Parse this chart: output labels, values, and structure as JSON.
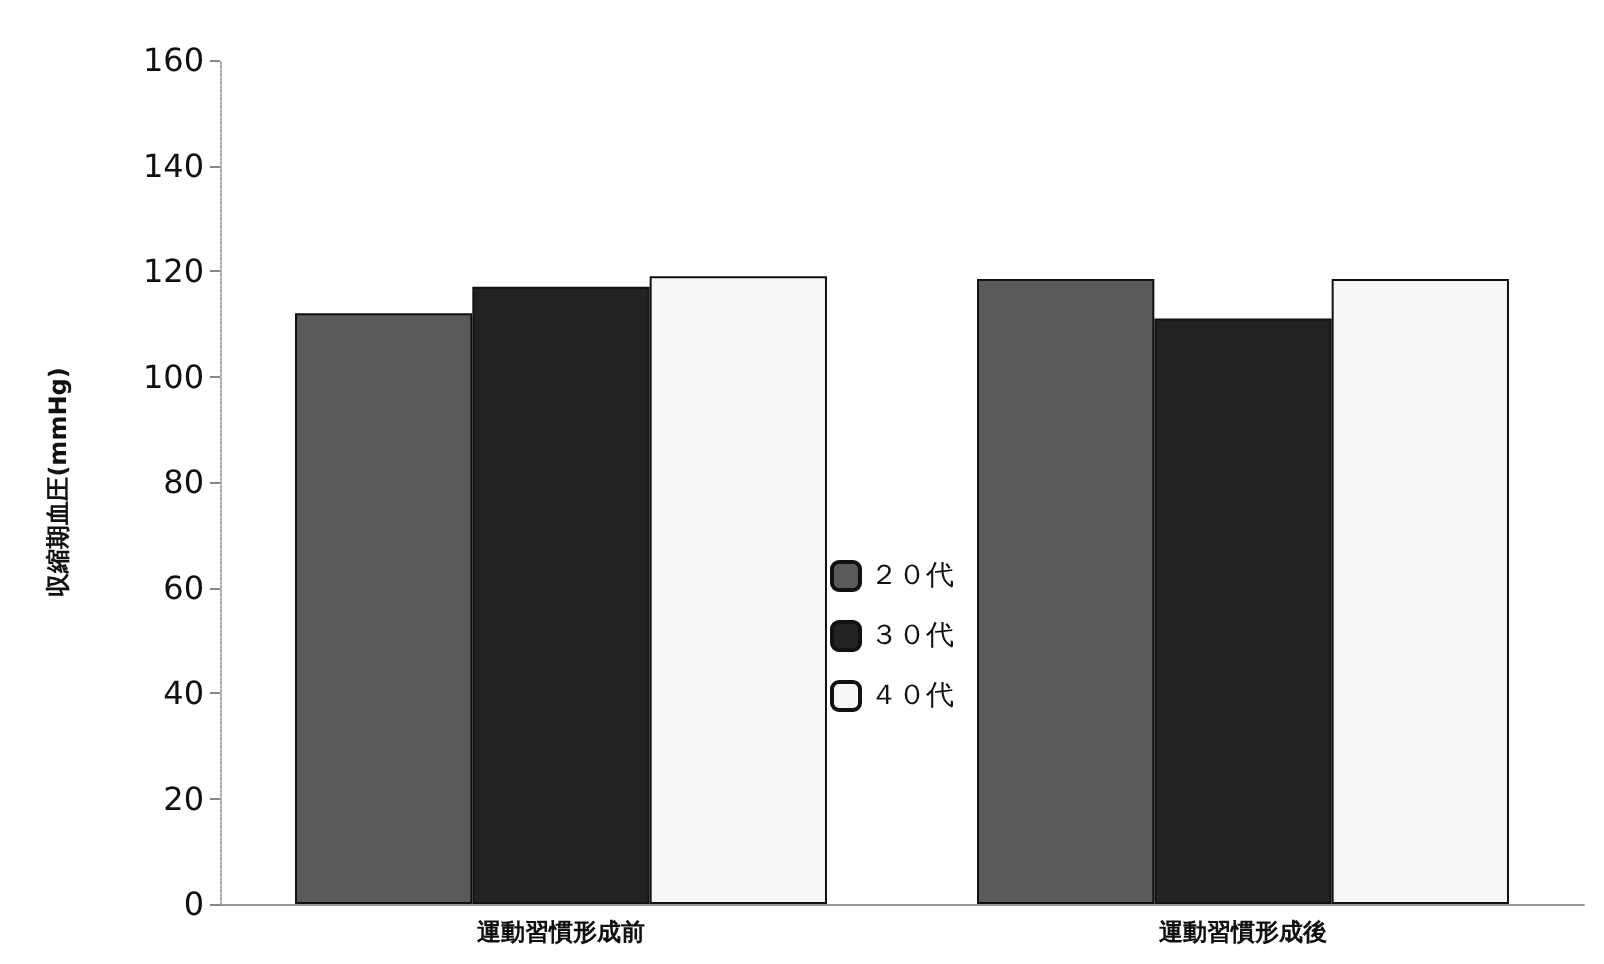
{
  "chart_data": {
    "type": "bar",
    "ylabel": "収縮期血圧(mmHg)",
    "categories": [
      "運動習慣形成前",
      "運動習慣形成後"
    ],
    "series": [
      {
        "name": "２０代",
        "color": "#5a5a5a",
        "values": [
          112,
          118.5
        ]
      },
      {
        "name": "３０代",
        "color": "#222222",
        "values": [
          117,
          111
        ]
      },
      {
        "name": "４０代",
        "color": "#f7f7f7",
        "values": [
          119,
          118.5
        ]
      }
    ],
    "ylim": [
      0,
      160
    ],
    "yticks": [
      0,
      20,
      40,
      60,
      80,
      100,
      120,
      140,
      160
    ],
    "grid": false,
    "legend": "center"
  }
}
